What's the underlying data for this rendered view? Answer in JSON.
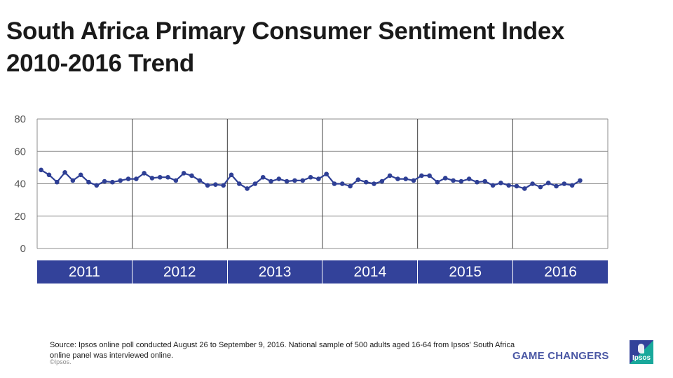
{
  "title": "South Africa Primary Consumer Sentiment Index 2010-2016 Trend",
  "title_lines": [
    "South Africa Primary Consumer Sentiment Index",
    "2010-2016 Trend"
  ],
  "chart_data": {
    "type": "line",
    "title": "South Africa Primary Consumer Sentiment Index 2010-2016 Trend",
    "xlabel": "",
    "ylabel": "",
    "ylim": [
      0,
      80
    ],
    "yticks": [
      0,
      20,
      40,
      60,
      80
    ],
    "grid": true,
    "legend": "none",
    "categories": [
      "2011",
      "2012",
      "2013",
      "2014",
      "2015",
      "2016"
    ],
    "points_per_year": 12,
    "series": [
      {
        "name": "Primary Consumer Sentiment Index",
        "color": "#2e3f95",
        "values": [
          48.5,
          45.5,
          41,
          47,
          42,
          45.5,
          41,
          39,
          41.5,
          41,
          42,
          43,
          43,
          46.5,
          43.5,
          44,
          44,
          42,
          46.5,
          45,
          42,
          39,
          39.5,
          39,
          45.5,
          40,
          37,
          40,
          44,
          41.5,
          43,
          41.5,
          42,
          42,
          44,
          43,
          46,
          40,
          40,
          38.5,
          42.5,
          41,
          40,
          41.5,
          45,
          43,
          43,
          42,
          45,
          45,
          41,
          43.5,
          42,
          41.5,
          43,
          41,
          41.5,
          39,
          40.5,
          39,
          38.5,
          37,
          40,
          38,
          40.5,
          38.5,
          40,
          39,
          42
        ]
      }
    ]
  },
  "footer": {
    "source": "Source: Ipsos online poll conducted August 26 to September 9, 2016. National sample of 500 adults aged 16-64 from Ipsos' South Africa online panel was interviewed online.",
    "copyright": "©Ipsos.",
    "tagline": "GAME CHANGERS",
    "logo_text": "Ipsos"
  }
}
